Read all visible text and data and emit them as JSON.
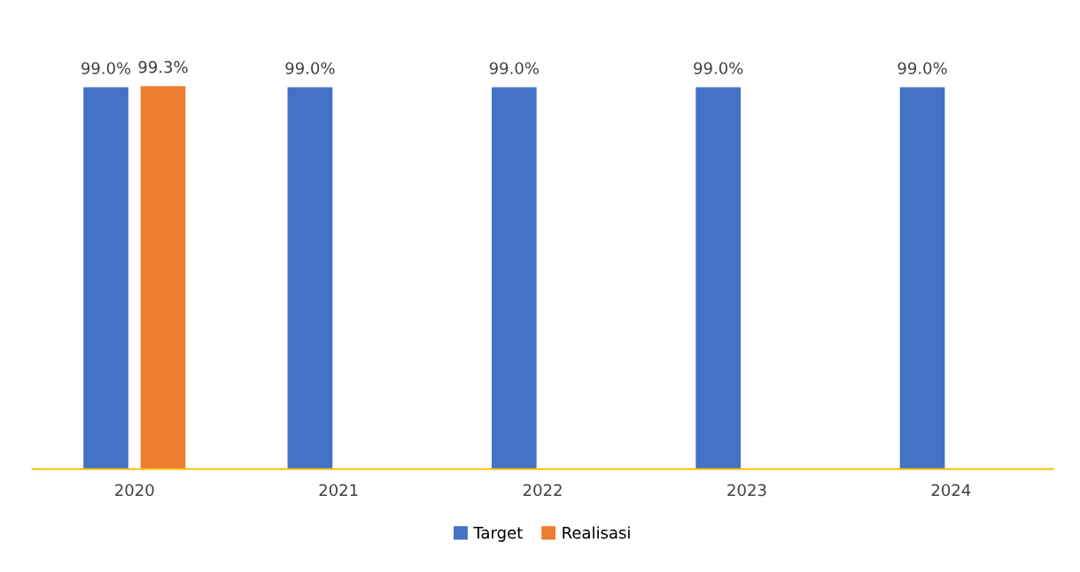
{
  "chart_data": {
    "type": "bar",
    "categories": [
      "2020",
      "2021",
      "2022",
      "2023",
      "2024"
    ],
    "series": [
      {
        "name": "Target",
        "color": "#4472c4",
        "values": [
          99.0,
          99.0,
          99.0,
          99.0,
          99.0
        ],
        "value_labels": [
          "99.0%",
          "99.0%",
          "99.0%",
          "99.0%",
          "99.0%"
        ]
      },
      {
        "name": "Realisasi",
        "color": "#ed7d31",
        "values": [
          99.3,
          null,
          null,
          null,
          null
        ],
        "value_labels": [
          "99.3%",
          null,
          null,
          null,
          null
        ]
      }
    ],
    "legend": "bottom"
  }
}
